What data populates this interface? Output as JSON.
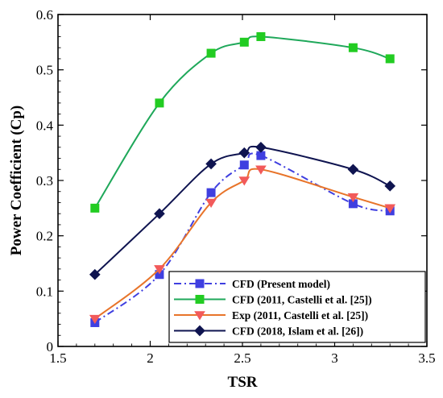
{
  "chart_data": {
    "type": "line",
    "xlabel": "TSR",
    "ylabel": "Power Coefficient (Cp)",
    "xlim": [
      1.5,
      3.5
    ],
    "ylim": [
      0,
      0.6
    ],
    "x_ticks": [
      1.5,
      2,
      2.5,
      3,
      3.5
    ],
    "x_tick_labels": [
      "1.5",
      "2",
      "2.5",
      "3",
      "3.5"
    ],
    "y_ticks": [
      0,
      0.1,
      0.2,
      0.3,
      0.4,
      0.5,
      0.6
    ],
    "y_tick_labels": [
      "0",
      "0.1",
      "0.2",
      "0.3",
      "0.4",
      "0.5",
      "0.6"
    ],
    "grid": false,
    "legend_position": "bottom-right",
    "series": [
      {
        "name": "CFD (Present model)",
        "color": "#3f3fe0",
        "line_style": "dashdot",
        "marker": "square",
        "x": [
          1.7,
          2.05,
          2.33,
          2.51,
          2.6,
          3.1,
          3.3
        ],
        "y": [
          0.043,
          0.13,
          0.278,
          0.328,
          0.345,
          0.258,
          0.245
        ]
      },
      {
        "name": "CFD (2011, Castelli et al. [25])",
        "color": "#1fa85a",
        "marker_color": "#22cc22",
        "line_style": "solid",
        "marker": "square",
        "x": [
          1.7,
          2.05,
          2.33,
          2.51,
          2.6,
          3.1,
          3.3
        ],
        "y": [
          0.25,
          0.44,
          0.53,
          0.55,
          0.56,
          0.54,
          0.52
        ]
      },
      {
        "name": "Exp (2011, Castelli et al. [25])",
        "color": "#e8742a",
        "marker_color": "#f25a5a",
        "line_style": "solid",
        "marker": "triangle-down",
        "x": [
          1.7,
          2.05,
          2.33,
          2.51,
          2.6,
          3.1,
          3.3
        ],
        "y": [
          0.05,
          0.14,
          0.26,
          0.3,
          0.32,
          0.27,
          0.25
        ]
      },
      {
        "name": "CFD (2018, Islam et al. [26])",
        "color": "#0f1450",
        "marker_color": "#0f1450",
        "line_style": "solid",
        "marker": "diamond",
        "x": [
          1.7,
          2.05,
          2.33,
          2.51,
          2.6,
          3.1,
          3.3
        ],
        "y": [
          0.13,
          0.24,
          0.33,
          0.35,
          0.36,
          0.32,
          0.29
        ]
      }
    ]
  }
}
